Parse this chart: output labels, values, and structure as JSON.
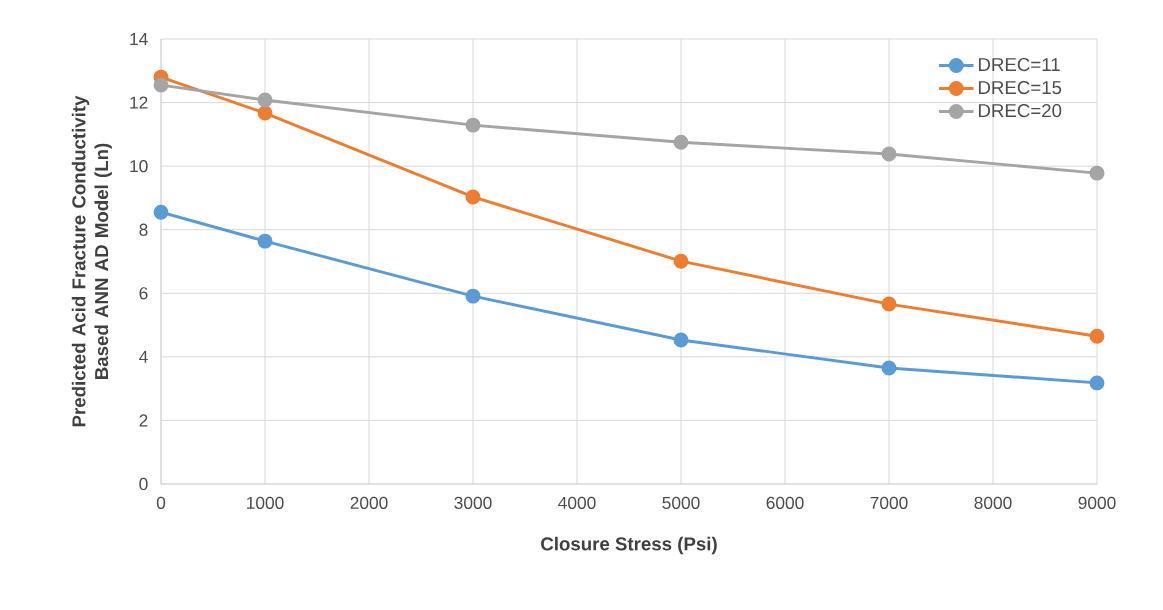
{
  "chart_data": {
    "type": "line",
    "xlabel": "Closure Stress (Psi)",
    "ylabel": "Predicted Acid Fracture Conductivity Based ANN AD Model (Ln)",
    "x": [
      0,
      1000,
      3000,
      5000,
      7000,
      9000
    ],
    "series": [
      {
        "name": "DREC=11",
        "color": "#5b9bd5",
        "values": [
          8.55,
          7.64,
          5.91,
          4.53,
          3.65,
          3.18
        ]
      },
      {
        "name": "DREC=15",
        "color": "#ed7d31",
        "values": [
          12.8,
          11.67,
          9.03,
          7.01,
          5.66,
          4.65
        ]
      },
      {
        "name": "DREC=20",
        "color": "#a5a5a5",
        "values": [
          12.55,
          12.08,
          11.29,
          10.75,
          10.38,
          9.78
        ]
      }
    ],
    "xlim": [
      0,
      9000
    ],
    "xticks": [
      0,
      1000,
      2000,
      3000,
      4000,
      5000,
      6000,
      7000,
      8000,
      9000
    ],
    "ylim": [
      0,
      14
    ],
    "yticks": [
      0,
      2,
      4,
      6,
      8,
      10,
      12,
      14
    ],
    "grid": true,
    "legend": "top right",
    "marker": "circle",
    "line_style": "solid"
  }
}
